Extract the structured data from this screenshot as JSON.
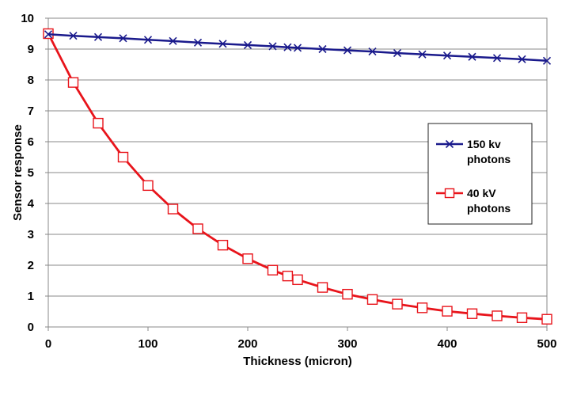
{
  "chart_data": {
    "type": "line",
    "title": "",
    "xlabel": "Thickness (micron)",
    "ylabel": "Sensor response",
    "xlim": [
      0,
      500
    ],
    "ylim": [
      0,
      10
    ],
    "x_ticks": [
      "0",
      "100",
      "200",
      "300",
      "400",
      "500"
    ],
    "y_ticks": [
      "0",
      "1",
      "2",
      "3",
      "4",
      "5",
      "6",
      "7",
      "8",
      "9",
      "10"
    ],
    "grid": "horizontal",
    "legend_position": "right",
    "series": [
      {
        "name_lines": [
          "150 kv",
          "photons"
        ],
        "color": "#1a1a8c",
        "marker": "x",
        "x": [
          0,
          25,
          50,
          75,
          100,
          125,
          150,
          175,
          200,
          225,
          240,
          250,
          275,
          300,
          325,
          350,
          375,
          400,
          425,
          450,
          475,
          500
        ],
        "y": [
          9.48,
          9.43,
          9.39,
          9.35,
          9.3,
          9.26,
          9.21,
          9.17,
          9.13,
          9.09,
          9.06,
          9.04,
          9.0,
          8.96,
          8.92,
          8.87,
          8.83,
          8.79,
          8.75,
          8.71,
          8.67,
          8.62
        ]
      },
      {
        "name_lines": [
          "40 kV",
          "photons"
        ],
        "color": "#e8141b",
        "marker": "square",
        "x": [
          0,
          25,
          50,
          75,
          100,
          125,
          150,
          175,
          200,
          225,
          240,
          250,
          275,
          300,
          325,
          350,
          375,
          400,
          425,
          450,
          475,
          500
        ],
        "y": [
          9.5,
          7.92,
          6.6,
          5.5,
          4.58,
          3.82,
          3.18,
          2.65,
          2.21,
          1.84,
          1.65,
          1.53,
          1.28,
          1.06,
          0.89,
          0.74,
          0.62,
          0.51,
          0.43,
          0.36,
          0.3,
          0.25
        ]
      }
    ]
  }
}
